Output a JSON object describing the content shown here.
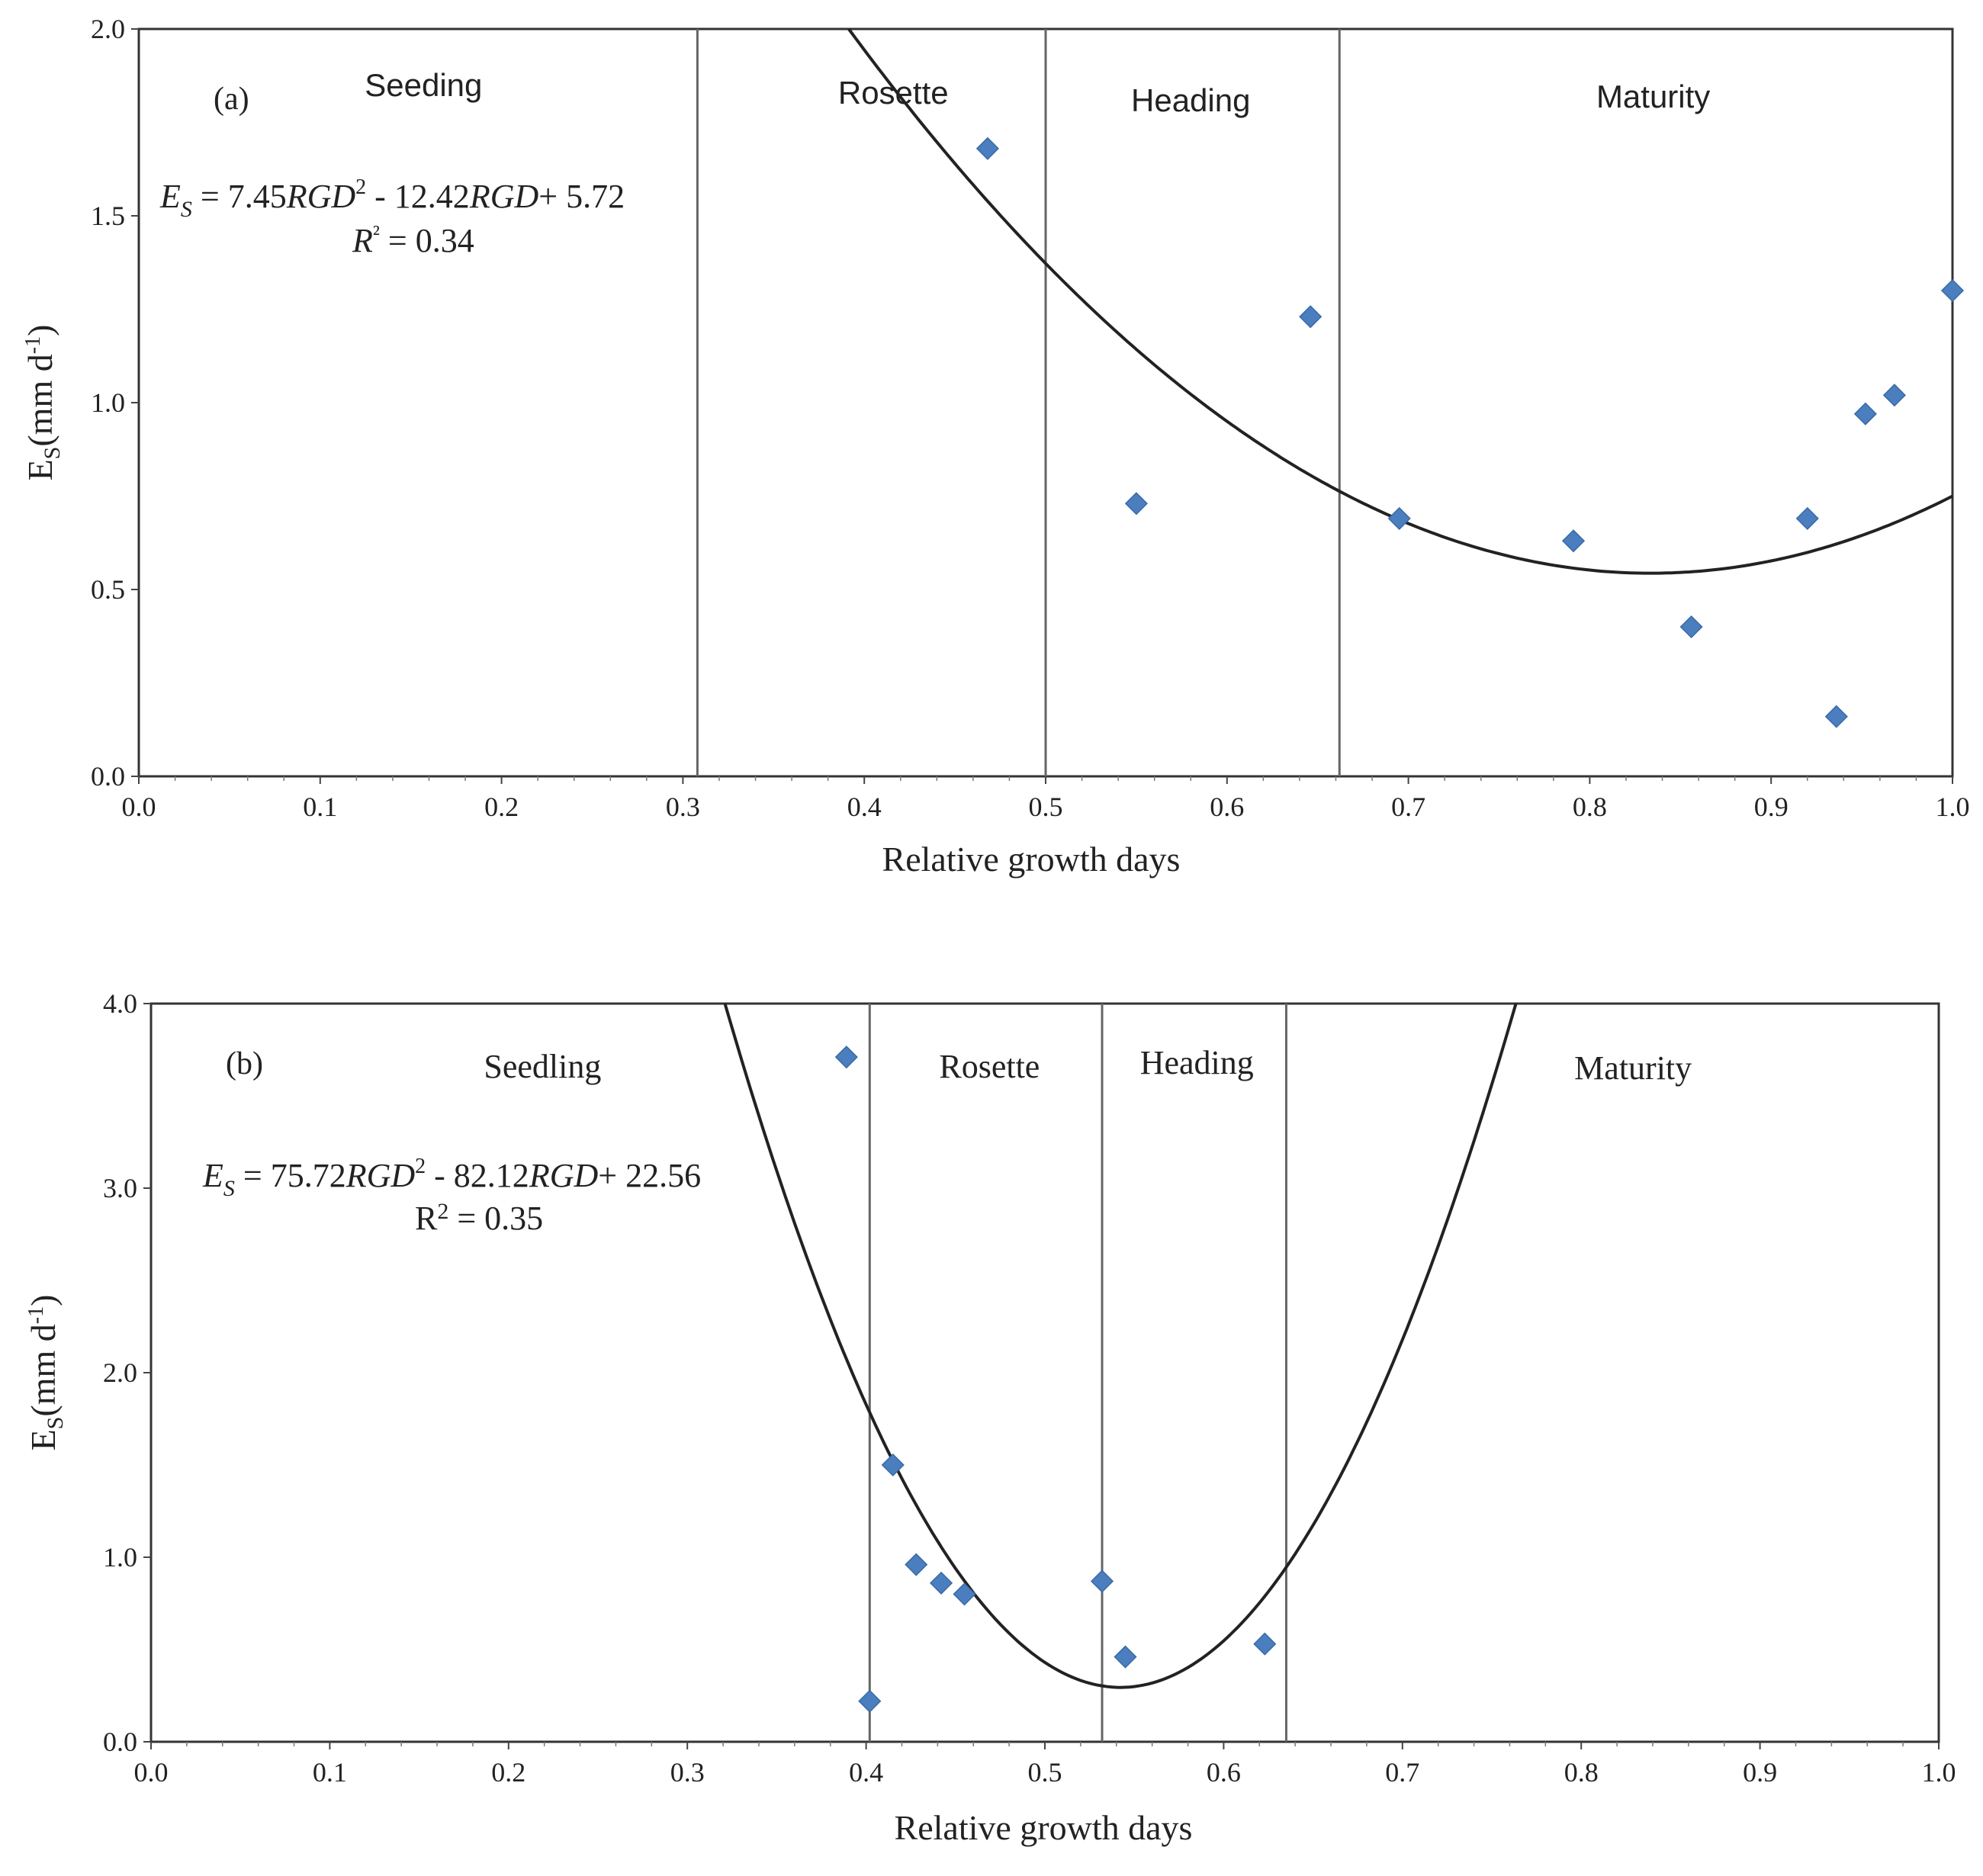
{
  "chart_data": [
    {
      "type": "scatter",
      "panel_label": "(a)",
      "xlabel": "Relative growth days",
      "ylabel": {
        "main": "E",
        "sub": "S",
        "rest": "(mm d",
        "sup": "-1",
        "end": ")"
      },
      "xlim": [
        0,
        1
      ],
      "ylim": [
        0,
        2
      ],
      "x_ticks": [
        0,
        0.1,
        0.2,
        0.3,
        0.4,
        0.5,
        0.6,
        0.7,
        0.8,
        0.9,
        1.0
      ],
      "x_tick_labels": [
        "0.0",
        "0.1",
        "0.2",
        "0.3",
        "0.4",
        "0.5",
        "0.6",
        "0.7",
        "0.8",
        "0.9",
        "1.0"
      ],
      "y_ticks": [
        0,
        0.5,
        1.0,
        1.5,
        2.0
      ],
      "y_tick_labels": [
        "0.0",
        "0.5",
        "1.0",
        "1.5",
        "2.0"
      ],
      "stage_boundaries": [
        0.308,
        0.5,
        0.662
      ],
      "stages": [
        {
          "label": "Seeding",
          "x": 0.157,
          "y": 1.82
        },
        {
          "label": "Rosette",
          "x": 0.416,
          "y": 1.8
        },
        {
          "label": "Heading",
          "x": 0.58,
          "y": 1.78
        },
        {
          "label": "Maturity",
          "x": 0.835,
          "y": 1.79
        }
      ],
      "points": [
        {
          "x": 0.468,
          "y": 1.68
        },
        {
          "x": 0.55,
          "y": 0.73
        },
        {
          "x": 0.646,
          "y": 1.23
        },
        {
          "x": 0.695,
          "y": 0.69
        },
        {
          "x": 0.791,
          "y": 0.63
        },
        {
          "x": 0.856,
          "y": 0.4
        },
        {
          "x": 0.92,
          "y": 0.69
        },
        {
          "x": 0.936,
          "y": 0.16
        },
        {
          "x": 0.952,
          "y": 0.97
        },
        {
          "x": 0.968,
          "y": 1.02
        },
        {
          "x": 1.0,
          "y": 1.3
        }
      ],
      "point_color": "#4a7ebf",
      "fit": {
        "a": 7.45,
        "b": -12.42,
        "c": 5.72,
        "equation_parts": [
          "E",
          "S",
          " = 7.45",
          "RGD",
          "2",
          " - 12.42",
          "RGD",
          "+ 5.72"
        ],
        "r2_parts": [
          "R",
          "²",
          " = 0.34"
        ]
      }
    },
    {
      "type": "scatter",
      "panel_label": "(b)",
      "xlabel": "Relative growth days",
      "ylabel": {
        "main": "E",
        "sub": "S",
        "rest": "(mm d",
        "sup": "-1",
        "end": ")"
      },
      "xlim": [
        0,
        1
      ],
      "ylim": [
        0,
        4
      ],
      "x_ticks": [
        0,
        0.1,
        0.2,
        0.3,
        0.4,
        0.5,
        0.6,
        0.7,
        0.8,
        0.9,
        1.0
      ],
      "x_tick_labels": [
        "0.0",
        "0.1",
        "0.2",
        "0.3",
        "0.4",
        "0.5",
        "0.6",
        "0.7",
        "0.8",
        "0.9",
        "1.0"
      ],
      "y_ticks": [
        0,
        1.0,
        2.0,
        3.0,
        4.0
      ],
      "y_tick_labels": [
        "0.0",
        "1.0",
        "2.0",
        "3.0",
        "4.0"
      ],
      "stage_boundaries": [
        0.402,
        0.532,
        0.635
      ],
      "stages": [
        {
          "label": "Seedling",
          "x": 0.219,
          "y": 3.6
        },
        {
          "label": "Rosette",
          "x": 0.469,
          "y": 3.6
        },
        {
          "label": "Heading",
          "x": 0.585,
          "y": 3.62
        },
        {
          "label": "Maturity",
          "x": 0.829,
          "y": 3.59
        }
      ],
      "points": [
        {
          "x": 0.389,
          "y": 3.71
        },
        {
          "x": 0.402,
          "y": 0.22
        },
        {
          "x": 0.415,
          "y": 1.5
        },
        {
          "x": 0.428,
          "y": 0.96
        },
        {
          "x": 0.442,
          "y": 0.86
        },
        {
          "x": 0.455,
          "y": 0.8
        },
        {
          "x": 0.532,
          "y": 0.87
        },
        {
          "x": 0.545,
          "y": 0.46
        },
        {
          "x": 0.623,
          "y": 0.53
        }
      ],
      "point_color": "#4a7ebf",
      "fit": {
        "a": 75.72,
        "b": -82.12,
        "c": 22.56,
        "equation_parts": [
          "E",
          "S",
          " = 75.72",
          "RGD",
          "2",
          " - 82.12",
          "RGD",
          "+ 22.56"
        ],
        "r2_parts": [
          "R",
          "2",
          " = 0.35"
        ]
      }
    }
  ]
}
